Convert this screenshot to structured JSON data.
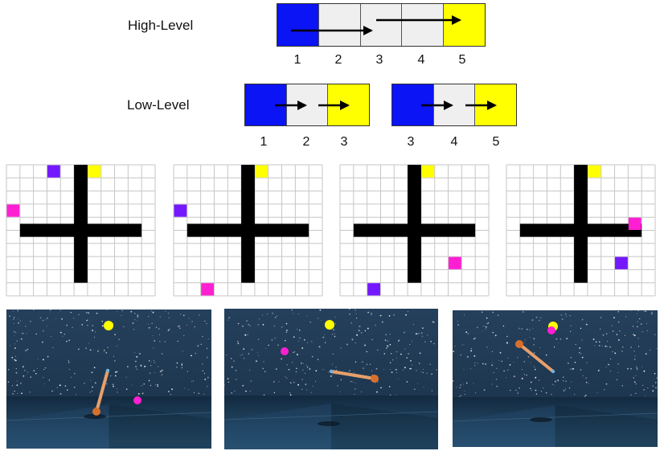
{
  "labels": {
    "high_level": "High-Level",
    "low_level": "Low-Level"
  },
  "high_sequence": {
    "cells": [
      "blue",
      "gray",
      "gray",
      "gray",
      "yellow"
    ],
    "numbers": [
      "1",
      "2",
      "3",
      "4",
      "5"
    ]
  },
  "low_sequences": [
    {
      "cells": [
        "blue",
        "gray",
        "yellow"
      ],
      "numbers": [
        "1",
        "2",
        "3"
      ]
    },
    {
      "cells": [
        "blue",
        "gray",
        "yellow"
      ],
      "numbers": [
        "3",
        "4",
        "5"
      ]
    }
  ],
  "colors": {
    "blue": "#0a14f5",
    "gray": "#efefef",
    "yellow": "#ffff00",
    "purple": "#7418ff",
    "magenta": "#ff1fd2",
    "wall": "#000000",
    "grid_line": "#c6c6c6",
    "sky": "#213a52",
    "floor": "#1d3d56",
    "arm": "#e8a06a",
    "joint": "#d8702c"
  },
  "gridworld": {
    "cols": 11,
    "rows": 10,
    "wall_cross": {
      "vertical_col": 5,
      "horizontal_row": 5
    },
    "panels": [
      {
        "goal_yellow": [
          6,
          0
        ],
        "purple": [
          3,
          0
        ],
        "magenta": [
          0,
          3
        ]
      },
      {
        "goal_yellow": [
          6,
          0
        ],
        "purple": [
          0,
          3
        ],
        "magenta": [
          2,
          9
        ]
      },
      {
        "goal_yellow": [
          6,
          0
        ],
        "purple": [
          2,
          9
        ],
        "magenta": [
          8,
          7
        ]
      },
      {
        "goal_yellow": [
          6,
          0
        ],
        "purple": [
          8,
          7
        ],
        "magenta": [
          9,
          4
        ]
      }
    ]
  },
  "reacher_scenes": [
    {
      "yellow_target": "yellow ball",
      "magenta_target": "magenta ball"
    },
    {
      "yellow_target": "yellow ball",
      "magenta_target": "magenta ball"
    },
    {
      "yellow_target": "yellow ball",
      "magenta_target": "magenta ball"
    }
  ]
}
